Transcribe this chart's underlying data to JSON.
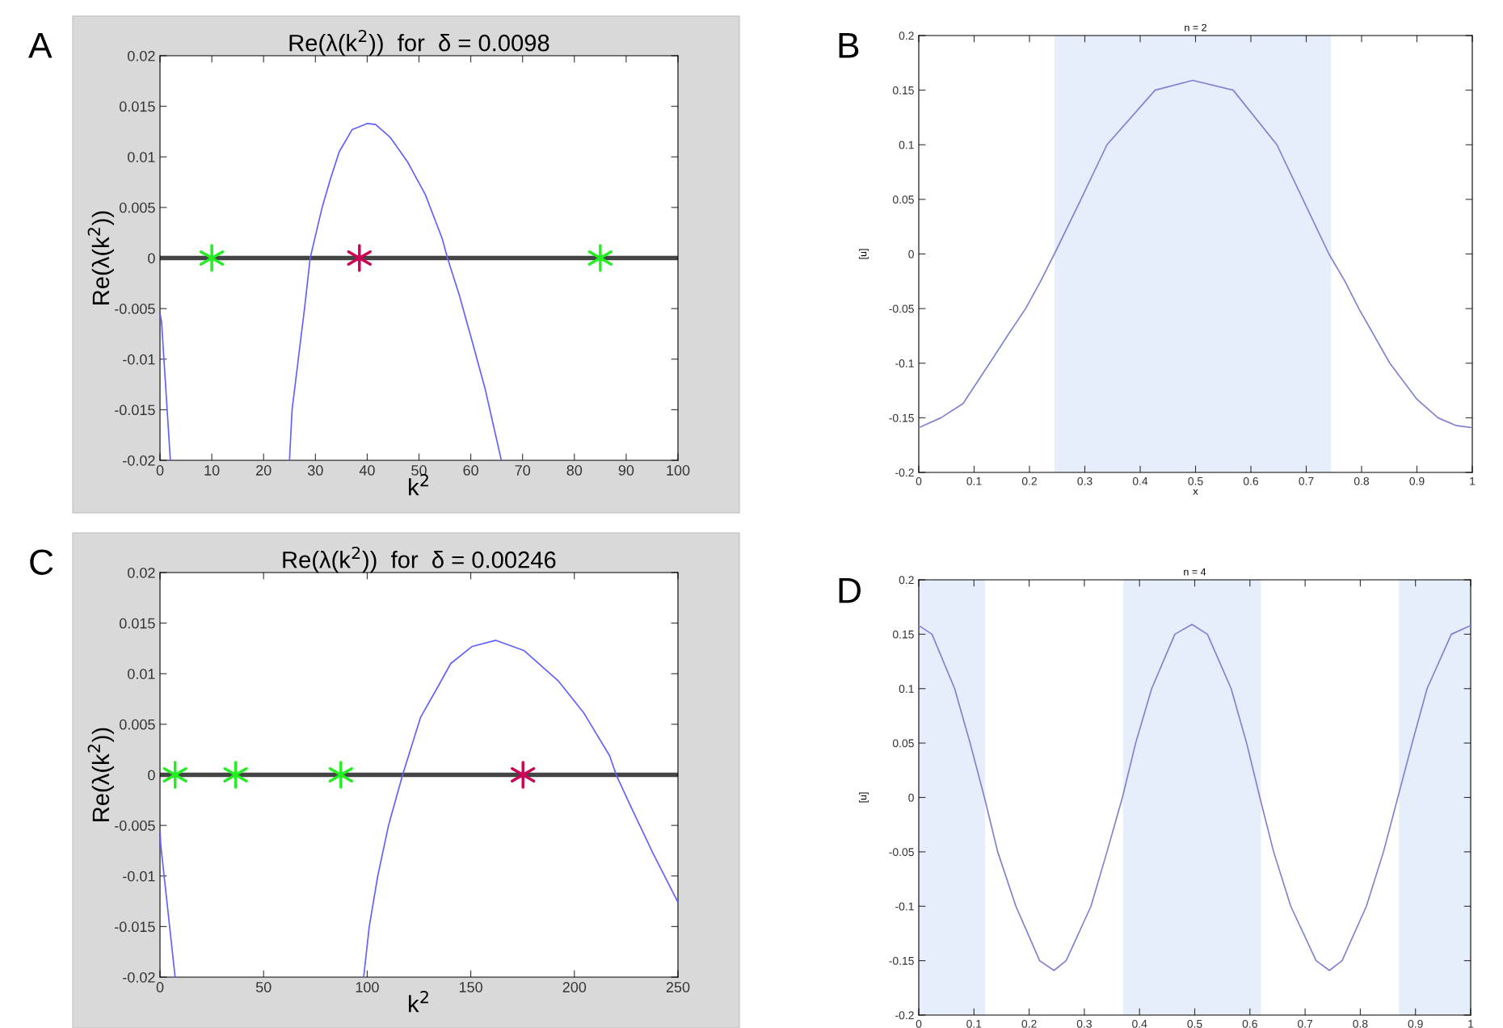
{
  "chart_data": [
    {
      "type": "line",
      "title": "Re(λ(k$^{2}$))  for  δ = 0.0098",
      "xlabel": "k$^{2}$",
      "ylabel": "Re(λ(k$^{2}$))",
      "annotations": [
        "A"
      ],
      "xlim": [
        0,
        100
      ],
      "ylim": [
        -0.02,
        0.02
      ],
      "xticks": [
        0,
        10,
        20,
        30,
        40,
        50,
        60,
        70,
        80,
        90,
        100
      ],
      "yticks": [
        -0.02,
        -0.015,
        -0.01,
        -0.005,
        0,
        0.005,
        0.01,
        0.015,
        0.02
      ],
      "grid": false,
      "legend": false,
      "ref_lines": [
        {
          "axis": "y",
          "value": 0,
          "color": "#444444"
        }
      ],
      "series": [
        {
          "color": "#6060ff",
          "marker": "none",
          "x": [
            0,
            0.3,
            2
          ],
          "values": [
            -0.0055,
            -0.0063,
            -0.02
          ]
        },
        {
          "color": "#6060ff",
          "marker": "none",
          "x": [
            25,
            25.5,
            26.7,
            27.9,
            29.0,
            31.3,
            32.9,
            34.6,
            37.1,
            40.0,
            41.6,
            44.5,
            47.8,
            51.2,
            54.5,
            55.5,
            57.8,
            60.3,
            62.8,
            65.9
          ],
          "values": [
            -0.02,
            -0.015,
            -0.01,
            -0.005,
            0,
            0.005,
            0.0078,
            0.0105,
            0.0127,
            0.0133,
            0.0132,
            0.0119,
            0.0095,
            0.0063,
            0.0019,
            0,
            -0.0037,
            -0.0083,
            -0.013,
            -0.02
          ]
        },
        {
          "type": "scatter",
          "color": "#22ee22",
          "marker": "cross",
          "x": [
            10,
            85
          ],
          "values": [
            0,
            0
          ]
        },
        {
          "type": "scatter",
          "color": "#cc0055",
          "marker": "cross",
          "x": [
            38.5
          ],
          "values": [
            0
          ]
        }
      ]
    },
    {
      "type": "line",
      "title": "n = 2",
      "xlabel": "x",
      "ylabel": "[u]",
      "annotations": [
        "B"
      ],
      "xlim": [
        0,
        1
      ],
      "ylim": [
        -0.2,
        0.2
      ],
      "xticks": [
        0,
        0.1,
        0.2,
        0.3,
        0.4,
        0.5,
        0.6,
        0.7,
        0.8,
        0.9,
        1
      ],
      "yticks": [
        -0.2,
        -0.15,
        -0.1,
        -0.05,
        0,
        0.05,
        0.1,
        0.15,
        0.2
      ],
      "grid": false,
      "legend": false,
      "bands": [
        {
          "axis": "x",
          "from": 0.245,
          "to": 0.745,
          "color": "#e6eefc"
        }
      ],
      "series": [
        {
          "color": "#8080d0",
          "marker": "none",
          "x": [
            0,
            0.04,
            0.08,
            0.128,
            0.16,
            0.193,
            0.22,
            0.245,
            0.293,
            0.34,
            0.427,
            0.495,
            0.568,
            0.647,
            0.694,
            0.741,
            0.77,
            0.795,
            0.851,
            0.9,
            0.938,
            0.97,
            1
          ],
          "values": [
            -0.159,
            -0.15,
            -0.137,
            -0.1,
            -0.075,
            -0.05,
            -0.025,
            0,
            0.05,
            0.1,
            0.15,
            0.159,
            0.15,
            0.1,
            0.05,
            0,
            -0.025,
            -0.05,
            -0.1,
            -0.133,
            -0.15,
            -0.157,
            -0.159
          ]
        }
      ]
    },
    {
      "type": "line",
      "title": "Re(λ(k$^{2}$))  for  δ = 0.00246",
      "xlabel": "k$^{2}$",
      "ylabel": "Re(λ(k$^{2}$))",
      "annotations": [
        "C"
      ],
      "xlim": [
        0,
        250
      ],
      "ylim": [
        -0.02,
        0.02
      ],
      "xticks": [
        0,
        50,
        100,
        150,
        200,
        250
      ],
      "yticks": [
        -0.02,
        -0.015,
        -0.01,
        -0.005,
        0,
        0.005,
        0.01,
        0.015,
        0.02
      ],
      "grid": false,
      "legend": false,
      "ref_lines": [
        {
          "axis": "y",
          "value": 0,
          "color": "#444444"
        }
      ],
      "series": [
        {
          "color": "#6060ff",
          "marker": "none",
          "x": [
            0,
            0.4,
            7.3
          ],
          "values": [
            -0.0055,
            -0.007,
            -0.02
          ]
        },
        {
          "color": "#6060ff",
          "marker": "none",
          "x": [
            98.3,
            101,
            105.1,
            110.3,
            117.1,
            125.8,
            134.1,
            140.3,
            150.7,
            162.1,
            175.6,
            192.2,
            204.6,
            217,
            220.2,
            227.4,
            237.8,
            250
          ],
          "values": [
            -0.02,
            -0.015,
            -0.01,
            -0.005,
            0,
            0.0057,
            0.0087,
            0.011,
            0.0127,
            0.0133,
            0.0123,
            0.0093,
            0.0061,
            0.0019,
            0,
            -0.0032,
            -0.0077,
            -0.0126
          ]
        },
        {
          "type": "scatter",
          "color": "#22ee22",
          "marker": "cross",
          "x": [
            7.3,
            36.5,
            87.3
          ],
          "values": [
            0,
            0,
            0
          ]
        },
        {
          "type": "scatter",
          "color": "#cc0055",
          "marker": "cross",
          "x": [
            175.2
          ],
          "values": [
            0
          ]
        }
      ]
    },
    {
      "type": "line",
      "title": "n = 4",
      "ylabel": "[u]",
      "annotations": [
        "D"
      ],
      "xlim": [
        0,
        1
      ],
      "ylim": [
        -0.2,
        0.2
      ],
      "xticks": [
        0,
        0.1,
        0.2,
        0.3,
        0.4,
        0.5,
        0.6,
        0.7,
        0.8,
        0.9,
        1
      ],
      "yticks": [
        -0.2,
        -0.15,
        -0.1,
        -0.05,
        0,
        0.05,
        0.1,
        0.15,
        0.2
      ],
      "grid": false,
      "legend": false,
      "bands": [
        {
          "axis": "x",
          "from": 0,
          "to": 0.12,
          "color": "#e6eefc"
        },
        {
          "axis": "x",
          "from": 0.37,
          "to": 0.62,
          "color": "#e6eefc"
        },
        {
          "axis": "x",
          "from": 0.87,
          "to": 1,
          "color": "#e6eefc"
        }
      ],
      "series": [
        {
          "color": "#8080d0",
          "marker": "none",
          "x": [
            0,
            0.024,
            0.065,
            0.093,
            0.119,
            0.143,
            0.176,
            0.219,
            0.245,
            0.267,
            0.312,
            0.341,
            0.369,
            0.393,
            0.422,
            0.464,
            0.495,
            0.523,
            0.566,
            0.594,
            0.618,
            0.643,
            0.674,
            0.72,
            0.744,
            0.767,
            0.811,
            0.842,
            0.868,
            0.894,
            0.921,
            0.965,
            1
          ],
          "values": [
            0.158,
            0.15,
            0.1,
            0.05,
            0,
            -0.05,
            -0.1,
            -0.15,
            -0.159,
            -0.15,
            -0.1,
            -0.05,
            0,
            0.05,
            0.1,
            0.15,
            0.159,
            0.15,
            0.1,
            0.05,
            0,
            -0.05,
            -0.1,
            -0.15,
            -0.159,
            -0.15,
            -0.1,
            -0.05,
            0,
            0.05,
            0.1,
            0.15,
            0.158
          ]
        }
      ]
    }
  ]
}
